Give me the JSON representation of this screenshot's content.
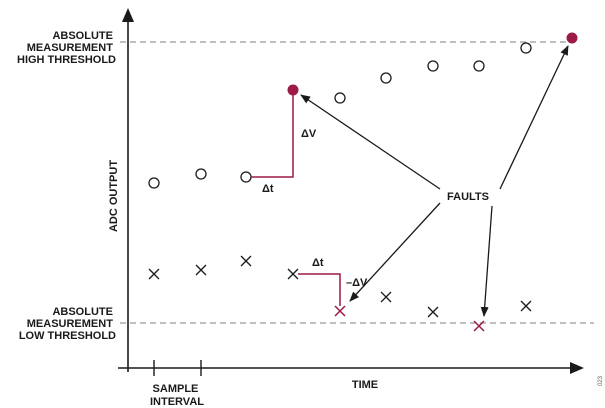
{
  "labels": {
    "high_threshold": [
      "ABSOLUTE",
      "MEASUREMENT",
      "HIGH THRESHOLD"
    ],
    "low_threshold": [
      "ABSOLUTE",
      "MEASUREMENT",
      "LOW THRESHOLD"
    ],
    "y_axis": "ADC OUTPUT",
    "x_axis": "TIME",
    "sample_interval": [
      "SAMPLE",
      "INTERVAL"
    ],
    "faults": "FAULTS",
    "delta_v": "ΔV",
    "delta_t": "Δt",
    "neg_delta_v": "–ΔV",
    "figure_id": "023"
  },
  "colors": {
    "axis": "#1a1a1a",
    "threshold": "#999999",
    "fault": "#9b1b45",
    "marker": "#1a1a1a"
  }
}
